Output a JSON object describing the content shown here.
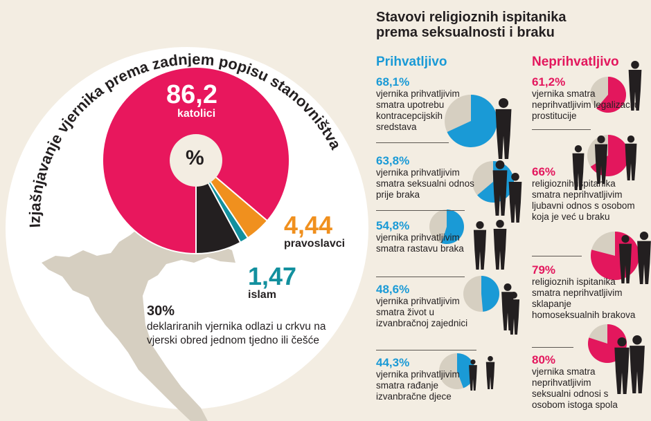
{
  "colors": {
    "background": "#f3ede2",
    "catholic": "#e8175d",
    "orthodox": "#f0901e",
    "islam": "#12909e",
    "other": "#231f20",
    "accept": "#1a9ad6",
    "reject": "#e3175d",
    "remainder": "#d6cfc1",
    "map": "#d6cfc1"
  },
  "left": {
    "title": "Izjašnjavanje vjernika prema zadnjem popisu stanovništva",
    "unit": "%",
    "catholic": {
      "value": "86,2",
      "label": "katolici"
    },
    "orthodox": {
      "value": "4,44",
      "label": "pravoslavci"
    },
    "islam": {
      "value": "1,47",
      "label": "islam"
    },
    "note": {
      "value": "30%",
      "text": "deklariranih vjernika odlazi u crkvu na vjerski obred jednom tjedno ili češće"
    }
  },
  "right": {
    "title_line1": "Stavovi religioznih ispitanika",
    "title_line2": "prema seksualnosti i braku",
    "accept_heading": "Prihvatljivo",
    "reject_heading": "Neprihvatljivo",
    "accept": [
      {
        "pct": "68,1%",
        "text": "vjernika prihvatljivim smatra upotrebu kontracepcijskih sredstava"
      },
      {
        "pct": "63,8%",
        "text": "vjernika prihvatljivim smatra seksualni odnos prije braka"
      },
      {
        "pct": "54,8%",
        "text": "vjernika prihvatljivim smatra rastavu braka"
      },
      {
        "pct": "48,6%",
        "text": "vjernika prihvatljivim smatra život u izvanbračnoj zajednici"
      },
      {
        "pct": "44,3%",
        "text": "vjernika prihvatljivim smatra rađanje izvanbračne djece"
      }
    ],
    "reject": [
      {
        "pct": "61,2%",
        "text": "vjernika smatra neprihvatljivim legalizaciju prostitucije"
      },
      {
        "pct": "66%",
        "text": "religioznih ispitanika smatra neprihvatljivim ljubavni odnos s osobom koja je već u braku"
      },
      {
        "pct": "79%",
        "text": "religioznih ispitanika smatra neprihvatljivim sklapanje homoseksualnih brakova"
      },
      {
        "pct": "80%",
        "text": "vjernika smatra neprihvatljivim seksualni odnosi s osobom istoga spola"
      }
    ]
  },
  "chart_data": [
    {
      "type": "pie",
      "title": "Izjašnjavanje vjernika prema zadnjem popisu stanovništva",
      "unit": "%",
      "categories": [
        "katolici",
        "pravoslavci",
        "islam",
        ""
      ],
      "values": [
        86.2,
        4.44,
        1.47,
        7.89
      ],
      "colors": [
        "#e8175d",
        "#f0901e",
        "#12909e",
        "#231f20"
      ]
    },
    {
      "type": "pie",
      "group": "Prihvatljivo",
      "values": [
        68.1,
        63.8,
        54.8,
        48.6,
        44.3
      ]
    },
    {
      "type": "pie",
      "group": "Neprihvatljivo",
      "values": [
        61.2,
        66,
        79,
        80
      ]
    }
  ]
}
